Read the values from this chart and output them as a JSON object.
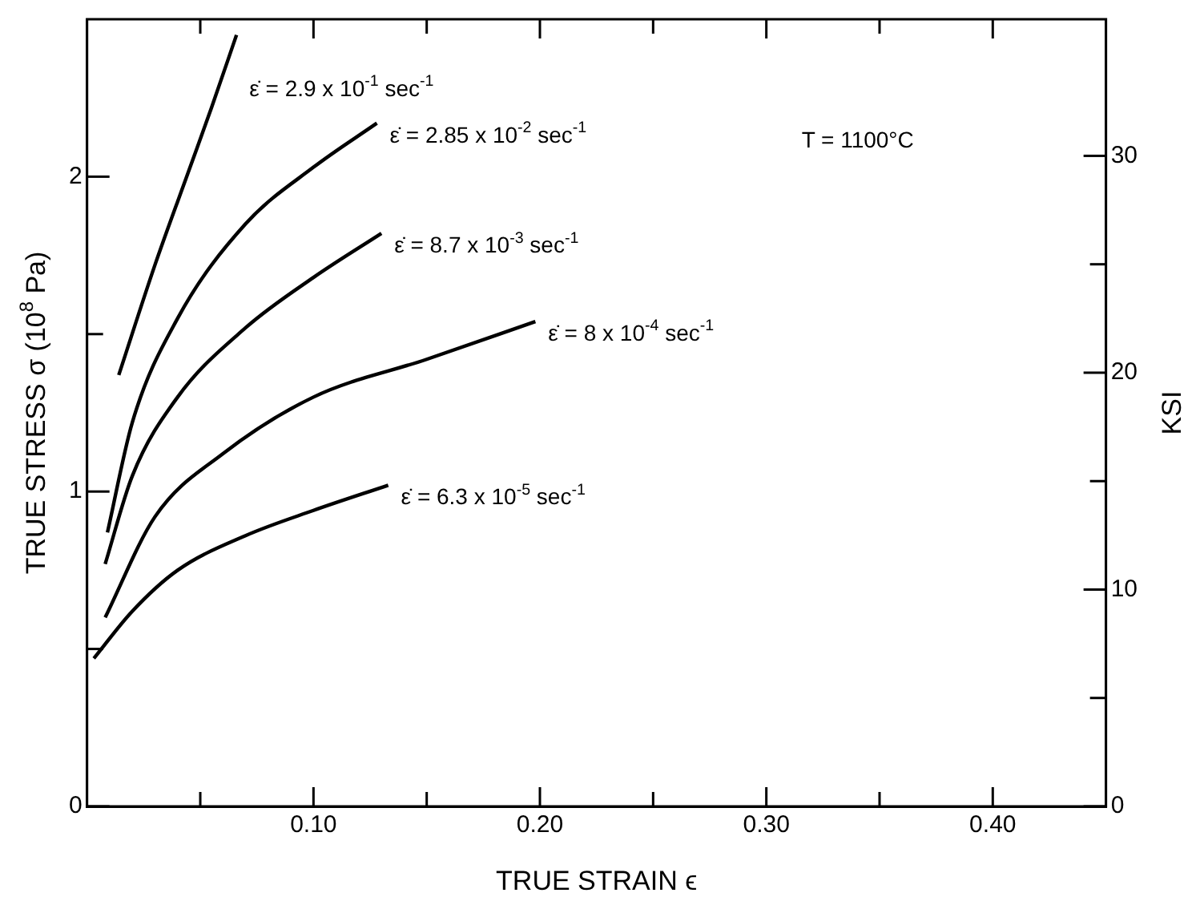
{
  "chart_data": {
    "type": "line",
    "xlabel": "TRUE STRAIN ϵ",
    "ylabel": "TRUE STRESS σ (10$^{8}$ Pa)",
    "y2label": "KSI",
    "annotations": [
      "T = 1100°C"
    ],
    "xlim": [
      0,
      0.45
    ],
    "xticks": [
      {
        "value": 0.05,
        "label": null
      },
      {
        "value": 0.1,
        "label": "0.10"
      },
      {
        "value": 0.15,
        "label": null
      },
      {
        "value": 0.2,
        "label": "0.20"
      },
      {
        "value": 0.25,
        "label": null
      },
      {
        "value": 0.3,
        "label": "0.30"
      },
      {
        "value": 0.35,
        "label": null
      },
      {
        "value": 0.4,
        "label": "0.40"
      }
    ],
    "ylim": [
      0,
      2.5
    ],
    "yticks": [
      0,
      {
        "value": 0.5,
        "label": null
      },
      1,
      {
        "value": 1.5,
        "label": null
      },
      2
    ],
    "y2lim": [
      0,
      36.3
    ],
    "y2ticks": [
      0,
      {
        "value": 5,
        "label": null
      },
      10,
      {
        "value": 15,
        "label": null
      },
      20,
      {
        "value": 25,
        "label": null
      },
      30
    ],
    "marker": "none",
    "legend": false,
    "grid": false,
    "series": [
      {
        "name": "ε̇ = 2.9 x 10$^{-1}$ sec$^{-1}$",
        "color": "#000000",
        "x": [
          0.014,
          0.03,
          0.045,
          0.055,
          0.066
        ],
        "values": [
          1.37,
          1.72,
          2.02,
          2.22,
          2.45
        ]
      },
      {
        "name": "ε̇ = 2.85 x 10$^{-2}$ sec$^{-1}$",
        "color": "#000000",
        "x": [
          0.009,
          0.02,
          0.04,
          0.07,
          0.1,
          0.128
        ],
        "values": [
          0.87,
          1.22,
          1.55,
          1.85,
          2.03,
          2.17
        ]
      },
      {
        "name": "ε̇ = 8.7 x 10$^{-3}$ sec$^{-1}$",
        "color": "#000000",
        "x": [
          0.008,
          0.02,
          0.04,
          0.07,
          0.1,
          0.13
        ],
        "values": [
          0.77,
          1.05,
          1.3,
          1.52,
          1.68,
          1.82
        ]
      },
      {
        "name": "ε̇ = 8 x 10$^{-4}$ sec$^{-1}$",
        "color": "#000000",
        "x": [
          0.008,
          0.03,
          0.06,
          0.1,
          0.15,
          0.198
        ],
        "values": [
          0.6,
          0.92,
          1.12,
          1.3,
          1.42,
          1.54
        ]
      },
      {
        "name": "ε̇ = 6.3 x 10$^{-5}$ sec$^{-1}$",
        "color": "#000000",
        "x": [
          0.003,
          0.02,
          0.04,
          0.07,
          0.1,
          0.133
        ],
        "values": [
          0.47,
          0.62,
          0.75,
          0.86,
          0.94,
          1.02
        ]
      }
    ]
  }
}
